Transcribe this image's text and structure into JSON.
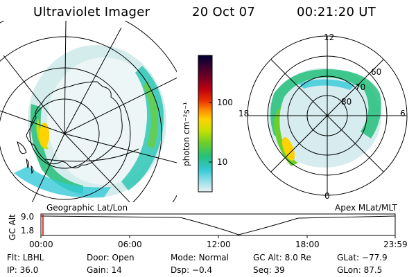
{
  "header": {
    "title": "Ultraviolet Imager",
    "date": "20 Oct 07",
    "time": "00:21:20 UT"
  },
  "left_panel": {
    "caption": "Geographic Lat/Lon"
  },
  "right_panel": {
    "caption": "Apex MLat/MLT",
    "mlt_labels": {
      "top": "12",
      "left": "18",
      "right": "6",
      "bottom": "0"
    },
    "lat_labels": [
      "60",
      "70",
      "80"
    ]
  },
  "colorbar": {
    "unit_label": "photon cm⁻²s⁻¹",
    "tick_labels": [
      "100",
      "10"
    ],
    "colors": [
      "#000033",
      "#3a0030",
      "#7a0022",
      "#bf0011",
      "#e83000",
      "#ff8a00",
      "#ffd200",
      "#c8e000",
      "#6ccf2a",
      "#24c07a",
      "#34c9d8",
      "#9fe1ea",
      "#e8f2f2"
    ]
  },
  "gc_alt_plot": {
    "ylabel": "GC Alt",
    "y_ticks": [
      "9.0",
      "1.8"
    ],
    "x_ticks": [
      "00:00",
      "06:00",
      "12:00",
      "18:00",
      "23:59"
    ]
  },
  "metadata": [
    [
      {
        "k": "Flt:",
        "v": "LBHL"
      },
      {
        "k": "Door:",
        "v": "Open"
      },
      {
        "k": "Mode:",
        "v": "Normal"
      },
      {
        "k": "GC Alt:",
        "v": "8.0 Re"
      },
      {
        "k": "GLat:",
        "v": "−77.9"
      }
    ],
    [
      {
        "k": "IP:",
        "v": "36.0"
      },
      {
        "k": "Gain:",
        "v": "14"
      },
      {
        "k": "Dsp:",
        "v": "−0.4"
      },
      {
        "k": "Seq:",
        "v": "39"
      },
      {
        "k": "GLon:",
        "v": "87.5"
      }
    ]
  ]
}
